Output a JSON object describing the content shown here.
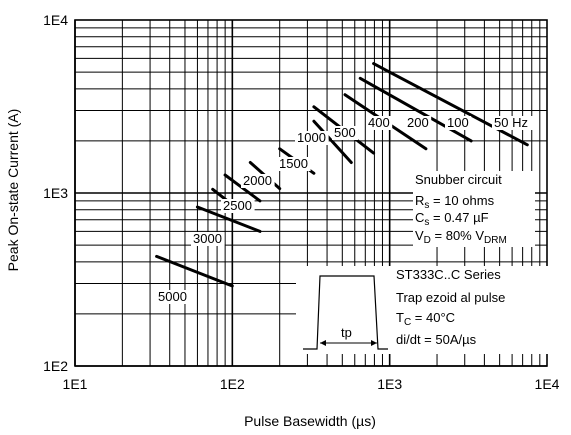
{
  "chart_data": {
    "type": "line",
    "title": "",
    "xlabel": "Pulse Basewidth (µs)",
    "ylabel": "Peak On-state Current (A)",
    "x_scale": "log",
    "y_scale": "log",
    "xlim": [
      10,
      10000
    ],
    "ylim": [
      100,
      10000
    ],
    "grid": true,
    "x_tick_labels": [
      "1E1",
      "1E2",
      "1E3",
      "1E4"
    ],
    "y_tick_labels": [
      "1E2",
      "1E3",
      "1E4"
    ],
    "series": [
      {
        "name": "50 Hz",
        "points": [
          [
            790,
            5600
          ],
          [
            7500,
            1900
          ]
        ]
      },
      {
        "name": "100",
        "points": [
          [
            650,
            4600
          ],
          [
            3300,
            2000
          ]
        ]
      },
      {
        "name": "200",
        "points": [
          [
            520,
            3700
          ],
          [
            1700,
            1800
          ]
        ]
      },
      {
        "name": "400",
        "points": [
          [
            330,
            3150
          ],
          [
            790,
            1700
          ]
        ]
      },
      {
        "name": "500",
        "points": [
          [
            330,
            2600
          ],
          [
            570,
            1500
          ]
        ]
      },
      {
        "name": "1000",
        "points": [
          [
            200,
            1800
          ],
          [
            330,
            1300
          ]
        ]
      },
      {
        "name": "1500",
        "points": [
          [
            130,
            1500
          ],
          [
            200,
            1060
          ]
        ]
      },
      {
        "name": "2000",
        "points": [
          [
            90,
            1270
          ],
          [
            150,
            900
          ]
        ]
      },
      {
        "name": "2500",
        "points": [
          [
            75,
            1050
          ],
          [
            110,
            800
          ]
        ]
      },
      {
        "name": "3000",
        "points": [
          [
            60,
            830
          ],
          [
            150,
            600
          ]
        ]
      },
      {
        "name": "5000",
        "points": [
          [
            33,
            430
          ],
          [
            100,
            290
          ]
        ]
      }
    ],
    "annotations": {
      "snubber_title": "Snubber circuit",
      "rs": "R",
      "rs_sub": "s",
      "rs_value": " = 10 ohms",
      "cs": "C",
      "cs_sub": "s",
      "cs_value": " = 0.47 µF",
      "vd": "V",
      "vd_sub": "D",
      "vd_value": " = 80% V",
      "vd_value_sub": "DRM",
      "series_title": "ST333C..C Series",
      "pulse_type": "Trap ezoid al pulse",
      "tc": "T",
      "tc_sub": "C",
      "tc_value": "  = 40°C",
      "didt": "di/dt = 50A/µs",
      "tp": "tp"
    }
  }
}
